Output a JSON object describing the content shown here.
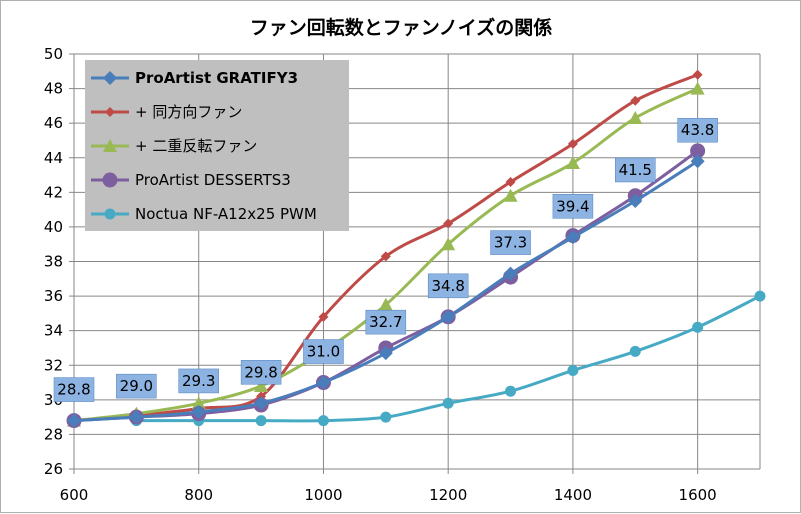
{
  "chart_data": {
    "type": "line",
    "title": "ファン回転数とファンノイズの関係",
    "xlabel": "",
    "ylabel": "",
    "xlim": [
      600,
      1700
    ],
    "ylim": [
      26,
      50
    ],
    "x_ticks": [
      600,
      800,
      1000,
      1200,
      1400,
      1600
    ],
    "y_ticks": [
      26,
      28,
      30,
      32,
      34,
      36,
      38,
      40,
      42,
      44,
      46,
      48,
      50
    ],
    "grid": true,
    "legend_position": "top-left",
    "series": [
      {
        "name": "ProArtist GRATIFY3",
        "color": "#4a7ebb",
        "marker": "diamond",
        "bold": true,
        "x": [
          600,
          700,
          800,
          900,
          1000,
          1100,
          1200,
          1300,
          1400,
          1500,
          1600
        ],
        "y": [
          28.8,
          29.0,
          29.3,
          29.8,
          31.0,
          32.7,
          34.8,
          37.3,
          39.4,
          41.5,
          43.8
        ]
      },
      {
        "name": "+ 同方向ファン",
        "color": "#be4b48",
        "marker": "diamond-small",
        "bold": false,
        "x": [
          600,
          700,
          800,
          900,
          1000,
          1100,
          1200,
          1300,
          1400,
          1500,
          1600
        ],
        "y": [
          28.8,
          29.1,
          29.5,
          30.2,
          34.8,
          38.3,
          40.2,
          42.6,
          44.8,
          47.3,
          48.8
        ]
      },
      {
        "name": "+ 二重反転ファン",
        "color": "#98b954",
        "marker": "triangle",
        "bold": false,
        "x": [
          600,
          700,
          800,
          900,
          1000,
          1100,
          1200,
          1300,
          1400,
          1500,
          1600
        ],
        "y": [
          28.8,
          29.2,
          29.8,
          30.8,
          32.8,
          35.5,
          39.0,
          41.8,
          43.7,
          46.3,
          48.0
        ]
      },
      {
        "name": "ProArtist DESSERTS3",
        "color": "#7d5fa0",
        "marker": "circle",
        "bold": false,
        "x": [
          600,
          700,
          800,
          900,
          1000,
          1100,
          1200,
          1300,
          1400,
          1500,
          1600
        ],
        "y": [
          28.8,
          29.0,
          29.2,
          29.7,
          31.0,
          33.0,
          34.8,
          37.1,
          39.5,
          41.8,
          44.4
        ]
      },
      {
        "name": "Noctua NF-A12x25 PWM",
        "color": "#46aac5",
        "marker": "circle-small",
        "bold": false,
        "x": [
          700,
          800,
          900,
          1000,
          1100,
          1200,
          1300,
          1400,
          1500,
          1600,
          1700
        ],
        "y": [
          28.8,
          28.8,
          28.8,
          28.8,
          29.0,
          29.8,
          30.5,
          31.7,
          32.8,
          34.2,
          36.0
        ]
      }
    ],
    "data_labels": [
      {
        "x": 600,
        "y": 28.8,
        "text": "28.8"
      },
      {
        "x": 700,
        "y": 29.0,
        "text": "29.0"
      },
      {
        "x": 800,
        "y": 29.3,
        "text": "29.3"
      },
      {
        "x": 900,
        "y": 29.8,
        "text": "29.8"
      },
      {
        "x": 1000,
        "y": 31.0,
        "text": "31.0"
      },
      {
        "x": 1100,
        "y": 32.7,
        "text": "32.7"
      },
      {
        "x": 1200,
        "y": 34.8,
        "text": "34.8"
      },
      {
        "x": 1300,
        "y": 37.3,
        "text": "37.3"
      },
      {
        "x": 1400,
        "y": 39.4,
        "text": "39.4"
      },
      {
        "x": 1500,
        "y": 41.5,
        "text": "41.5"
      },
      {
        "x": 1600,
        "y": 43.8,
        "text": "43.8"
      }
    ],
    "colors": {
      "grid": "#878787",
      "legend_bg": "#bfbfbf",
      "data_label_bg": "#8db3e2",
      "data_label_border": "#4f81bd"
    }
  }
}
